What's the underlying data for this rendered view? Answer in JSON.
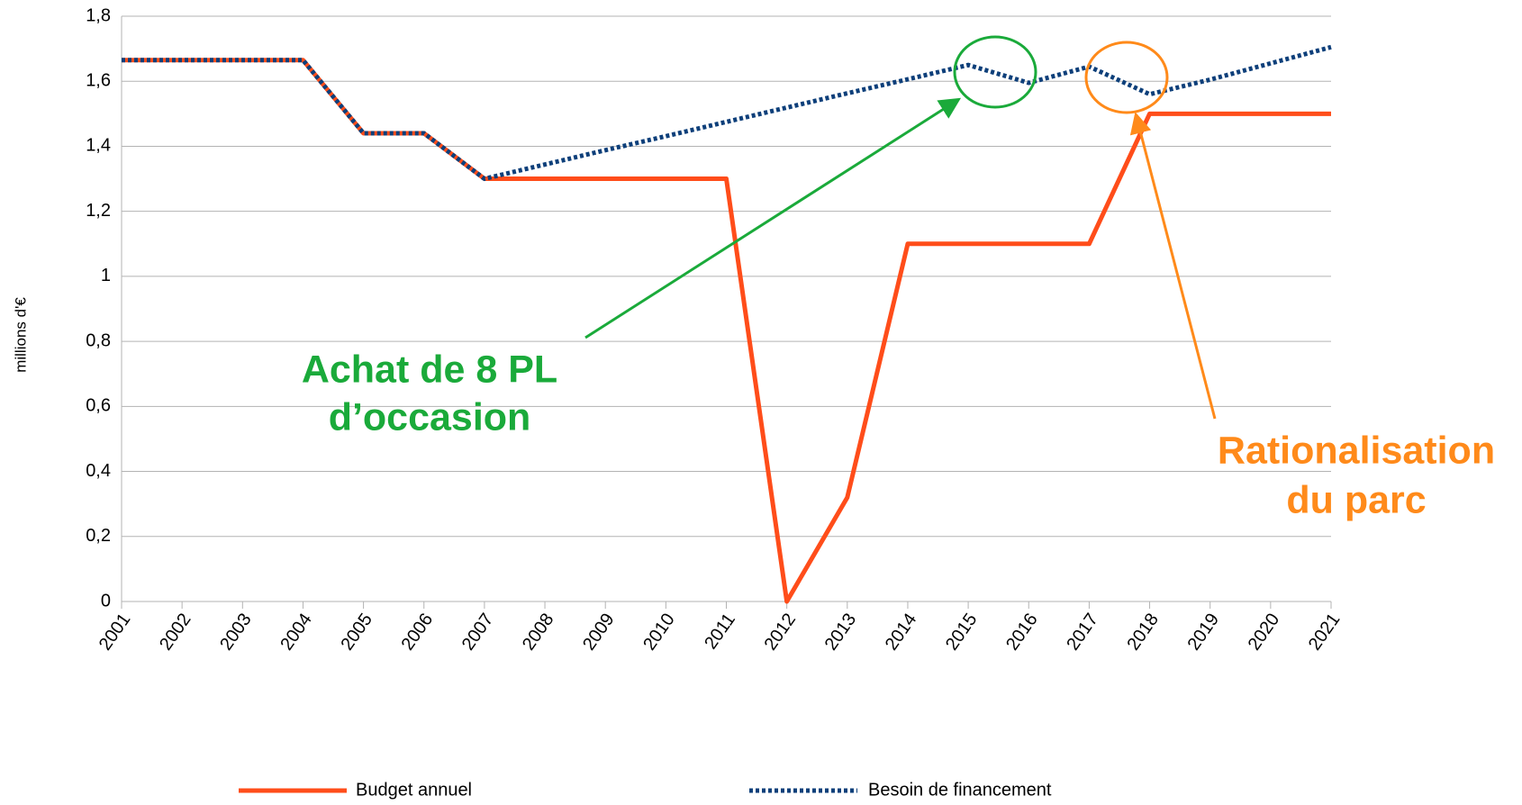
{
  "chart_data": {
    "type": "line",
    "y_label": "millions d'€",
    "categories": [
      "2001",
      "2002",
      "2003",
      "2004",
      "2005",
      "2006",
      "2007",
      "2008",
      "2009",
      "2010",
      "2011",
      "2012",
      "2013",
      "2014",
      "2015",
      "2016",
      "2017",
      "2018",
      "2019",
      "2020",
      "2021"
    ],
    "series": [
      {
        "name": "Budget annuel",
        "color": "#ff4d1a",
        "style": "solid",
        "values": [
          1.665,
          1.665,
          1.665,
          1.665,
          1.44,
          1.44,
          1.3,
          1.3,
          1.3,
          1.3,
          1.3,
          0,
          0.32,
          1.1,
          1.1,
          1.1,
          1.1,
          1.5,
          1.5,
          1.5,
          1.5
        ]
      },
      {
        "name": "Besoin de financement",
        "color": "#0d3f7a",
        "style": "dotted",
        "values": [
          1.665,
          1.665,
          1.665,
          1.665,
          1.44,
          1.44,
          1.3,
          1.344,
          1.388,
          1.431,
          1.475,
          1.519,
          1.563,
          1.606,
          1.65,
          1.595,
          1.645,
          1.56,
          1.605,
          1.655,
          1.705
        ]
      }
    ],
    "ylim": [
      0,
      1.8
    ],
    "yticks": [
      0,
      {
        "value": 0.2,
        "label": "0,2"
      },
      {
        "value": 0.4,
        "label": "0,4"
      },
      {
        "value": 0.6,
        "label": "0,6"
      },
      {
        "value": 0.8,
        "label": "0,8"
      },
      1,
      {
        "value": 1.2,
        "label": "1,2"
      },
      {
        "value": 1.4,
        "label": "1,4"
      },
      {
        "value": 1.6,
        "label": "1,6"
      },
      {
        "value": 1.8,
        "label": "1,8"
      }
    ],
    "grid": true,
    "legend": "bottom",
    "annotations": [
      {
        "lines": [
          "Achat de 8 PL",
          "d’occasion"
        ],
        "color": "#1aaa3a"
      },
      {
        "lines": [
          "Rationalisation",
          "du parc"
        ],
        "color": "#ff8a1a"
      }
    ]
  }
}
